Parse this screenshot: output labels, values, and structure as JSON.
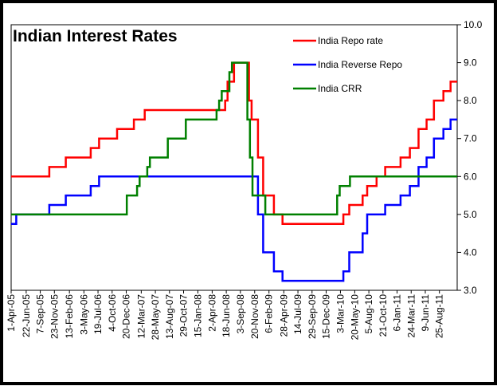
{
  "chart_data": {
    "type": "line",
    "title": "Indian Interest Rates",
    "xlabel": "",
    "ylabel": "",
    "ylim": [
      3.0,
      10.0
    ],
    "yticks": [
      "3.0",
      "4.0",
      "5.0",
      "6.0",
      "7.0",
      "8.0",
      "9.0",
      "10.0"
    ],
    "y_axis_side": "right",
    "grid": false,
    "legend_position": "top-right",
    "x_range": [
      "2005-04-01",
      "2011-11-30"
    ],
    "xtick_dates": [
      "2005-04-01",
      "2005-06-22",
      "2005-09-07",
      "2005-11-23",
      "2006-02-13",
      "2006-05-03",
      "2006-07-19",
      "2006-10-04",
      "2006-12-20",
      "2007-03-12",
      "2007-05-28",
      "2007-08-13",
      "2007-10-29",
      "2008-01-15",
      "2008-04-02",
      "2008-06-18",
      "2008-09-03",
      "2008-11-20",
      "2009-02-06",
      "2009-04-28",
      "2009-07-14",
      "2009-09-29",
      "2009-12-15",
      "2010-03-03",
      "2010-05-20",
      "2010-08-05",
      "2010-10-21",
      "2011-01-06",
      "2011-03-24",
      "2011-06-09",
      "2011-08-25"
    ],
    "xtick_labels": [
      "1-Apr-05",
      "22-Jun-05",
      "7-Sep-05",
      "23-Nov-05",
      "13-Feb-06",
      "3-May-06",
      "19-Jul-06",
      "4-Oct-06",
      "20-Dec-06",
      "12-Mar-07",
      "28-May-07",
      "13-Aug-07",
      "29-Oct-07",
      "15-Jan-08",
      "2-Apr-08",
      "18-Jun-08",
      "3-Sep-08",
      "20-Nov-08",
      "6-Feb-09",
      "28-Apr-09",
      "14-Jul-09",
      "29-Sep-09",
      "15-Dec-09",
      "3-Mar-10",
      "20-May-10",
      "5-Aug-10",
      "21-Oct-10",
      "6-Jan-11",
      "24-Mar-11",
      "9-Jun-11",
      "25-Aug-11"
    ],
    "series": [
      {
        "name": "India Repo rate",
        "color": "#ff0000",
        "x": [
          "2005-04-01",
          "2005-10-26",
          "2006-01-24",
          "2006-06-09",
          "2006-07-25",
          "2006-10-31",
          "2007-01-31",
          "2007-03-31",
          "2008-06-12",
          "2008-06-25",
          "2008-07-30",
          "2008-10-20",
          "2008-11-03",
          "2008-12-08",
          "2009-01-05",
          "2009-03-05",
          "2009-04-21",
          "2010-03-19",
          "2010-04-20",
          "2010-07-02",
          "2010-07-27",
          "2010-09-16",
          "2010-11-02",
          "2011-01-25",
          "2011-03-17",
          "2011-05-03",
          "2011-06-16",
          "2011-07-26",
          "2011-09-16",
          "2011-10-25",
          "2011-11-30"
        ],
        "values": [
          6.0,
          6.25,
          6.5,
          6.75,
          7.0,
          7.25,
          7.5,
          7.75,
          8.0,
          8.5,
          9.0,
          8.0,
          7.5,
          6.5,
          5.5,
          5.0,
          4.75,
          5.0,
          5.25,
          5.5,
          5.75,
          6.0,
          6.25,
          6.5,
          6.75,
          7.25,
          7.5,
          8.0,
          8.25,
          8.5,
          8.5
        ]
      },
      {
        "name": "India Reverse Repo",
        "color": "#0000ff",
        "x": [
          "2005-04-01",
          "2005-04-29",
          "2005-10-26",
          "2006-01-24",
          "2006-06-09",
          "2006-07-25",
          "2008-10-20",
          "2008-12-08",
          "2009-01-05",
          "2009-03-05",
          "2009-04-21",
          "2010-03-19",
          "2010-04-20",
          "2010-07-02",
          "2010-07-27",
          "2010-09-16",
          "2010-11-02",
          "2011-01-25",
          "2011-03-17",
          "2011-05-03",
          "2011-06-16",
          "2011-07-26",
          "2011-09-16",
          "2011-10-25",
          "2011-11-30"
        ],
        "values": [
          4.75,
          5.0,
          5.25,
          5.5,
          5.75,
          6.0,
          6.0,
          5.0,
          4.0,
          3.5,
          3.25,
          3.5,
          4.0,
          4.5,
          5.0,
          5.0,
          5.25,
          5.5,
          5.75,
          6.25,
          6.5,
          7.0,
          7.25,
          7.5,
          7.5
        ]
      },
      {
        "name": "India CRR",
        "color": "#008000",
        "x": [
          "2005-04-01",
          "2006-12-23",
          "2007-01-06",
          "2007-02-17",
          "2007-03-03",
          "2007-04-14",
          "2007-04-28",
          "2007-08-04",
          "2007-11-10",
          "2008-04-26",
          "2008-05-10",
          "2008-05-24",
          "2008-07-05",
          "2008-07-19",
          "2008-08-30",
          "2008-10-11",
          "2008-10-25",
          "2008-11-08",
          "2009-01-17",
          "2010-02-13",
          "2010-02-27",
          "2010-04-24",
          "2011-11-30"
        ],
        "values": [
          5.0,
          5.5,
          5.5,
          5.75,
          6.0,
          6.25,
          6.5,
          7.0,
          7.5,
          7.75,
          8.0,
          8.25,
          8.75,
          9.0,
          9.0,
          7.5,
          6.5,
          5.5,
          5.0,
          5.5,
          5.75,
          6.0,
          6.0
        ]
      }
    ]
  }
}
